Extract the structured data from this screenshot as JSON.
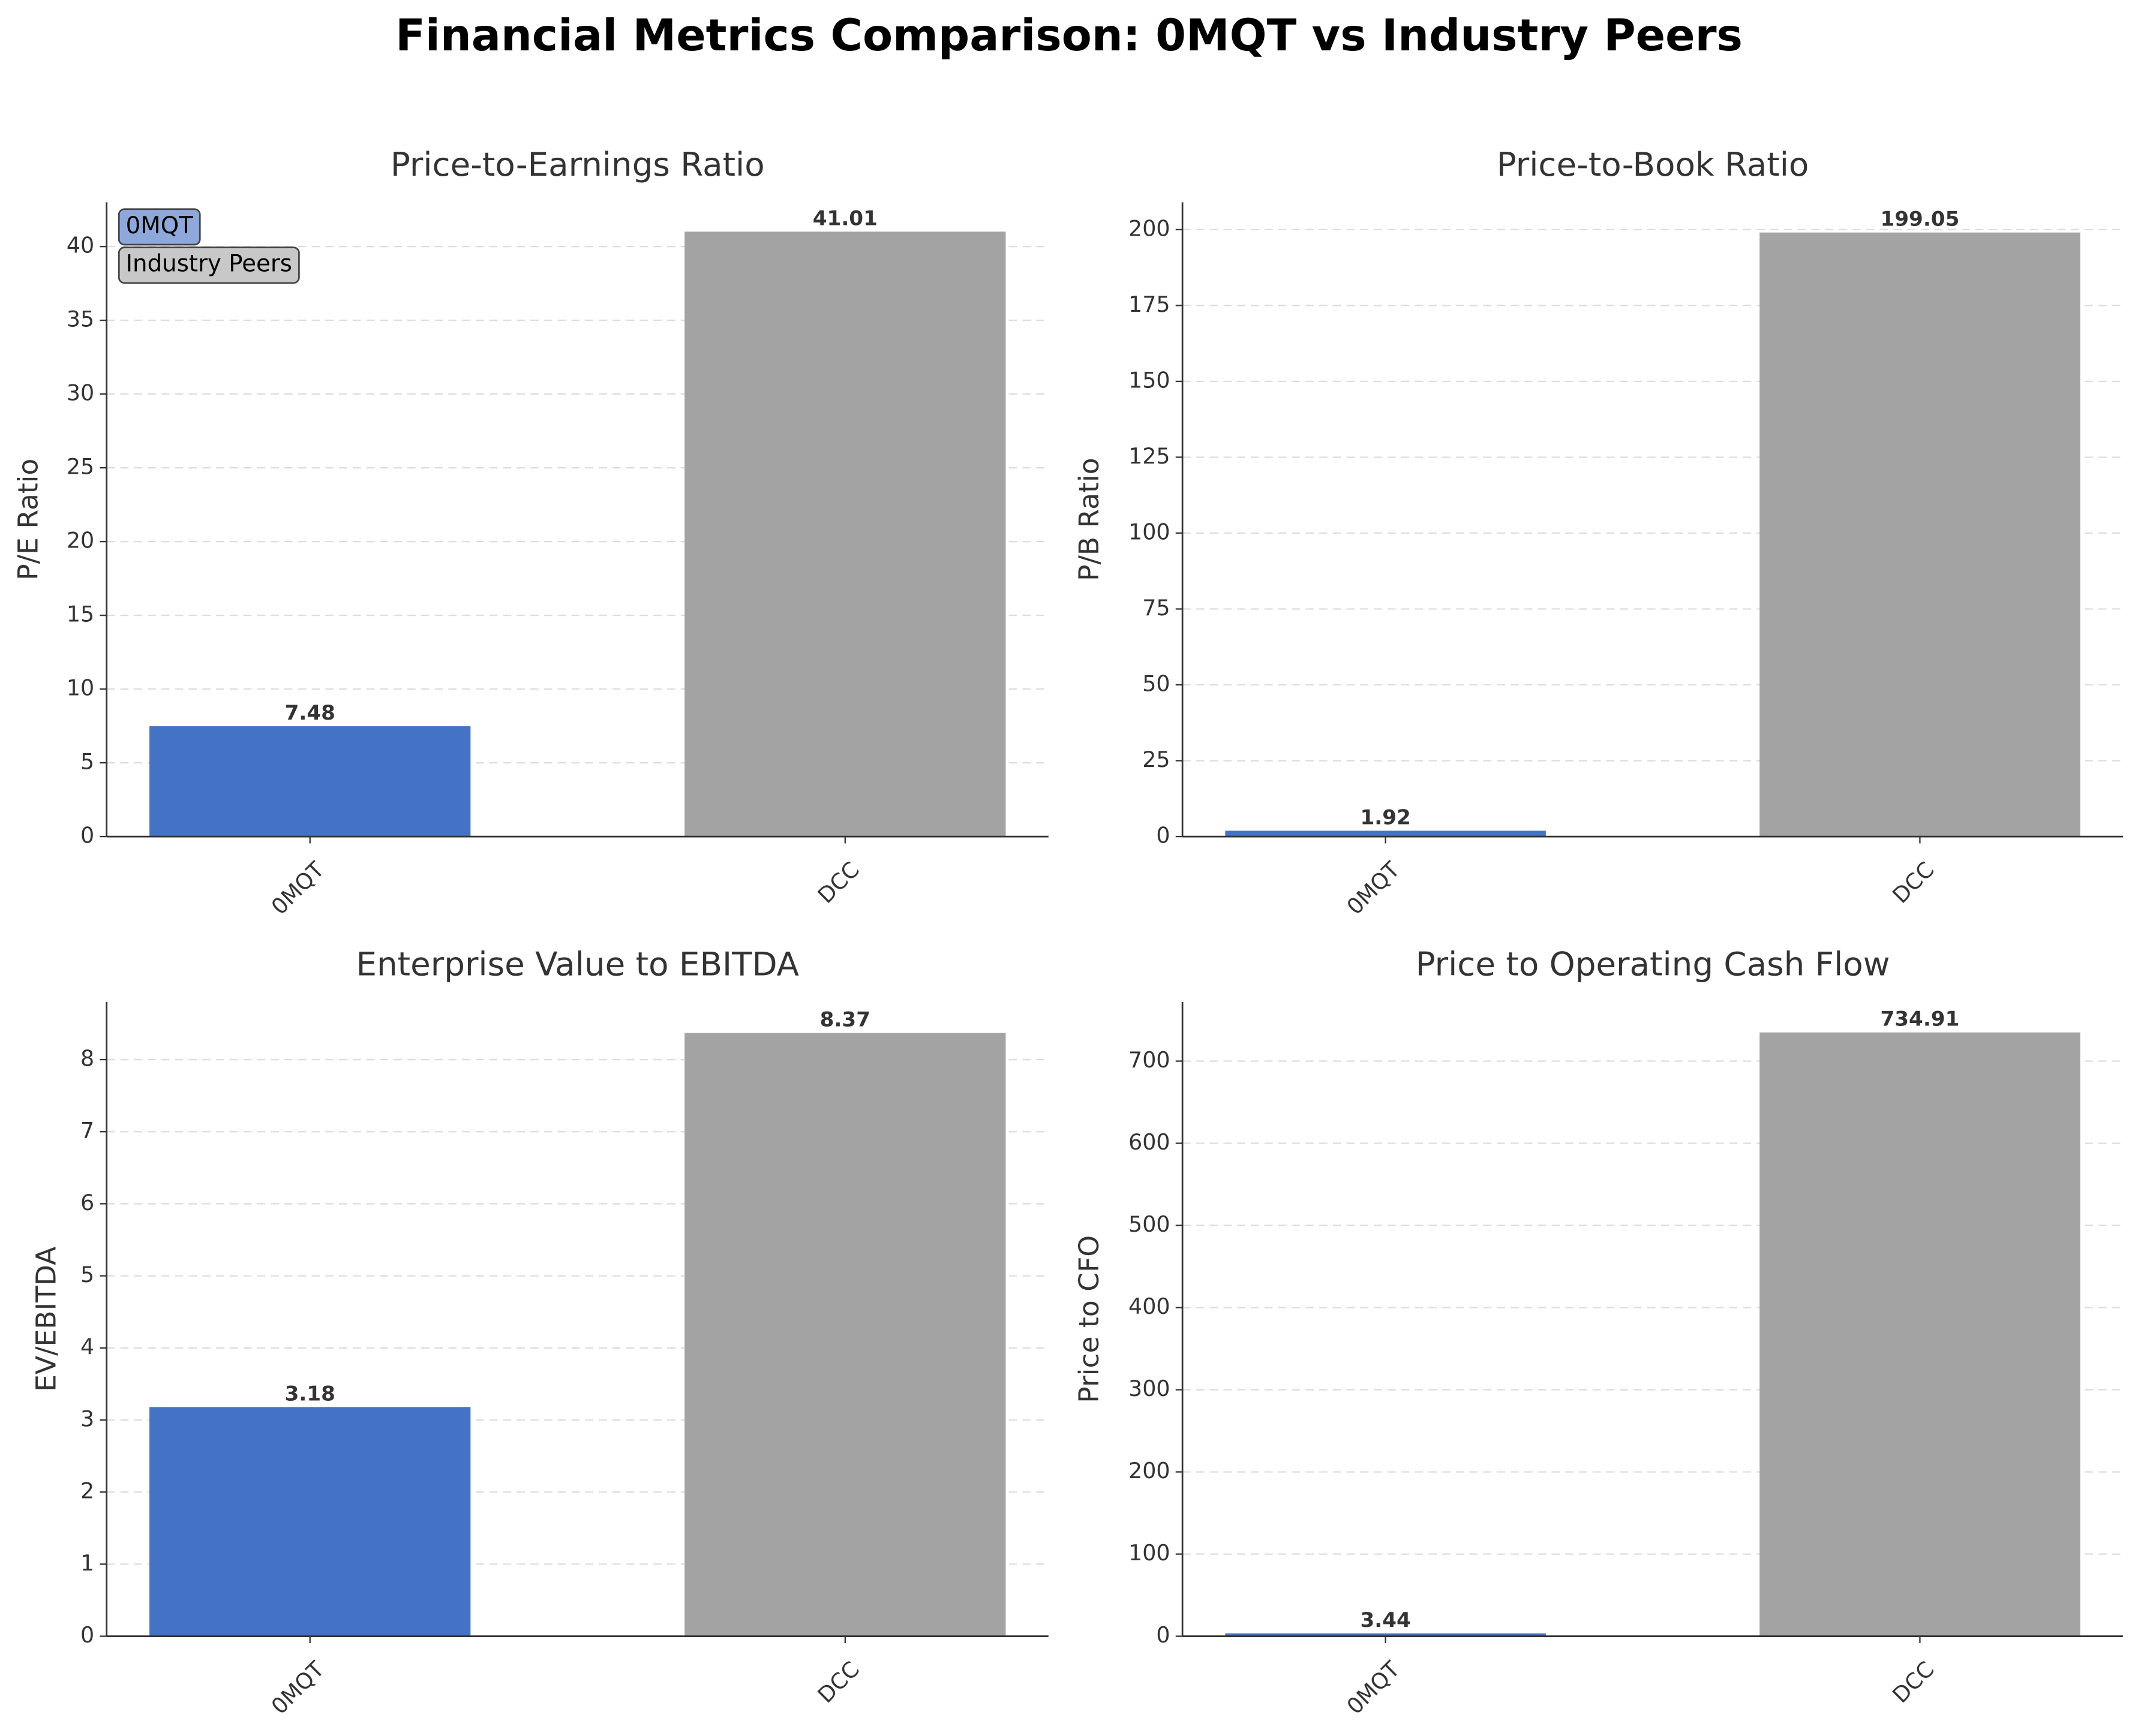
{
  "title": "Financial Metrics Comparison: 0MQT vs Industry Peers",
  "chart_data": [
    {
      "type": "bar",
      "title": "Price-to-Earnings Ratio",
      "y_label": "P/E Ratio",
      "categories": [
        "0MQT",
        "DCC"
      ],
      "values": [
        7.48,
        41.01
      ],
      "colors": [
        "#4472c4",
        "#a3a3a3"
      ],
      "ylim": [
        0,
        43
      ],
      "yticks": [
        0,
        5,
        10,
        15,
        20,
        25,
        30,
        35,
        40
      ],
      "grid": true,
      "legend": [
        {
          "name": "0MQT",
          "color": "#8fa8db"
        },
        {
          "name": "Industry Peers",
          "color": "#c8c8c8"
        }
      ],
      "legend_corner": "upper-left"
    },
    {
      "type": "bar",
      "title": "Price-to-Book Ratio",
      "y_label": "P/B Ratio",
      "categories": [
        "0MQT",
        "DCC"
      ],
      "values": [
        1.92,
        199.05
      ],
      "colors": [
        "#4472c4",
        "#a3a3a3"
      ],
      "ylim": [
        0,
        209
      ],
      "yticks": [
        0,
        25,
        50,
        75,
        100,
        125,
        150,
        175,
        200
      ],
      "grid": true
    },
    {
      "type": "bar",
      "title": "Enterprise Value to EBITDA",
      "y_label": "EV/EBITDA",
      "categories": [
        "0MQT",
        "DCC"
      ],
      "values": [
        3.18,
        8.37
      ],
      "colors": [
        "#4472c4",
        "#a3a3a3"
      ],
      "ylim": [
        0,
        8.8
      ],
      "yticks": [
        0,
        1,
        2,
        3,
        4,
        5,
        6,
        7,
        8
      ],
      "grid": true
    },
    {
      "type": "bar",
      "title": "Price to Operating Cash Flow",
      "y_label": "Price to CFO",
      "categories": [
        "0MQT",
        "DCC"
      ],
      "values": [
        3.44,
        734.91
      ],
      "colors": [
        "#4472c4",
        "#a3a3a3"
      ],
      "ylim": [
        0,
        772
      ],
      "yticks": [
        0,
        100,
        200,
        300,
        400,
        500,
        600,
        700
      ],
      "grid": true
    }
  ]
}
